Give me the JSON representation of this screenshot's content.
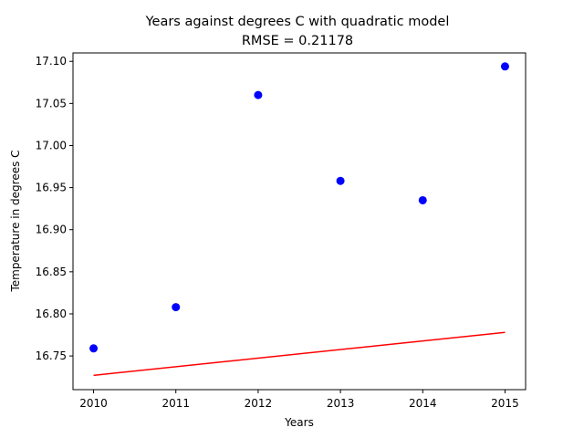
{
  "chart_data": {
    "type": "scatter",
    "title": "Years against degrees C with quadratic model",
    "subtitle": "RMSE = 0.21178",
    "xlabel": "Years",
    "ylabel": "Temperature in degrees C",
    "xlim": [
      2009.75,
      2015.25
    ],
    "ylim": [
      16.71,
      17.11
    ],
    "x_ticks": [
      "2010",
      "2011",
      "2012",
      "2013",
      "2014",
      "2015"
    ],
    "y_ticks": [
      "16.75",
      "16.80",
      "16.85",
      "16.90",
      "16.95",
      "17.00",
      "17.05",
      "17.10"
    ],
    "grid": false,
    "series": [
      {
        "type": "scatter",
        "color": "#0000ff",
        "x": [
          2010,
          2011,
          2012,
          2013,
          2014,
          2015
        ],
        "y": [
          16.759,
          16.808,
          17.06,
          16.958,
          16.935,
          17.094
        ]
      },
      {
        "type": "line",
        "color": "#ff0000",
        "x": [
          2010,
          2015
        ],
        "y": [
          16.727,
          16.778
        ]
      }
    ]
  }
}
